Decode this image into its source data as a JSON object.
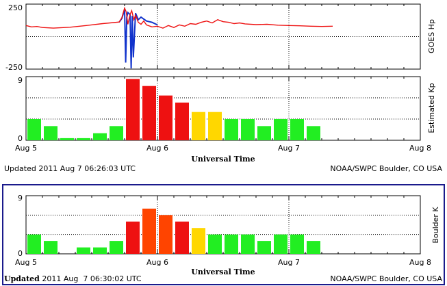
{
  "colors": {
    "green": "#22ee22",
    "yellow": "#ffd700",
    "orange_red": "#ff4400",
    "red": "#ee1111",
    "hp_red": "#ee1111",
    "hp_blue": "#1133cc",
    "frame": "#1a1a8c"
  },
  "top_panel": {
    "title_hp": "GOES Hp",
    "title_kp": "Estimated Kp",
    "hp_ticks": [
      "250",
      "-250"
    ],
    "kp_ticks": [
      "9",
      "0"
    ],
    "x_ticks": [
      "Aug 5",
      "Aug 6",
      "Aug 7",
      "Aug 8"
    ],
    "x_label": "Universal Time",
    "updated": "Updated 2011 Aug  7 06:26:03 UTC",
    "credit": "NOAA/SWPC Boulder, CO USA"
  },
  "bottom_panel": {
    "title": "Boulder K",
    "k_ticks": [
      "9",
      "0"
    ],
    "x_ticks": [
      "Aug 5",
      "Aug 6",
      "Aug 7",
      "Aug 8"
    ],
    "x_label": "Universal Time",
    "updated_word": "Updated",
    "updated_rest": " 2011 Aug  7 06:30:02 UTC",
    "credit": "NOAA/SWPC Boulder, CO USA"
  },
  "chart_data": [
    {
      "type": "line",
      "title": "GOES Hp",
      "xlabel": "Universal Time",
      "ylabel": "GOES Hp",
      "x_unit": "hours since 2011-08-05 00:00 UTC",
      "xlim": [
        0,
        72
      ],
      "ylim": [
        -250,
        250
      ],
      "series": [
        {
          "color": "red",
          "x": [
            0,
            1,
            2,
            3,
            5,
            8,
            11,
            14,
            16,
            17,
            17.5,
            18,
            18.3,
            18.6,
            19,
            19.3,
            19.7,
            20,
            20.5,
            21,
            21.5,
            22,
            23,
            24,
            25,
            26,
            27,
            28,
            29,
            30,
            31,
            32,
            33,
            34,
            35,
            36,
            37,
            38,
            39,
            40,
            42,
            44,
            46,
            48,
            50,
            52,
            54,
            56
          ],
          "y": [
            85,
            75,
            78,
            70,
            65,
            72,
            85,
            100,
            108,
            112,
            145,
            220,
            190,
            95,
            170,
            200,
            130,
            165,
            110,
            95,
            120,
            90,
            75,
            80,
            65,
            85,
            70,
            90,
            80,
            100,
            95,
            110,
            120,
            105,
            130,
            115,
            110,
            100,
            105,
            98,
            92,
            95,
            88,
            85,
            83,
            80,
            78,
            80
          ]
        },
        {
          "color": "blue",
          "x": [
            17,
            17.5,
            18,
            18.2,
            18.4,
            18.6,
            19,
            19.2,
            19.4,
            19.6,
            20,
            20.5,
            21,
            22,
            23,
            24
          ],
          "y": [
            110,
            140,
            210,
            -200,
            150,
            185,
            170,
            -245,
            160,
            -160,
            180,
            130,
            150,
            120,
            110,
            90
          ]
        }
      ]
    },
    {
      "type": "bar",
      "title": "Estimated Kp",
      "xlabel": "Universal Time",
      "ylabel": "Estimated Kp",
      "bar_hours": 3,
      "x_start": "2011-08-05 00:00 UTC",
      "ylim": [
        0,
        9
      ],
      "values": [
        3,
        2,
        0.3,
        0.3,
        1,
        2,
        8.67,
        7.67,
        6.33,
        5.33,
        4,
        4,
        3,
        3,
        2,
        3,
        3,
        2
      ],
      "colors": [
        "green",
        "green",
        "green",
        "green",
        "green",
        "green",
        "red",
        "red",
        "red",
        "red",
        "yellow",
        "yellow",
        "green",
        "green",
        "green",
        "green",
        "green",
        "green"
      ]
    },
    {
      "type": "bar",
      "title": "Boulder K",
      "xlabel": "Universal Time",
      "ylabel": "Boulder K",
      "bar_hours": 3,
      "x_start": "2011-08-05 00:00 UTC",
      "ylim": [
        0,
        9
      ],
      "values": [
        3,
        2,
        0,
        1,
        1,
        2,
        5,
        7,
        6,
        5,
        4,
        3,
        3,
        3,
        2,
        3,
        3,
        2
      ],
      "colors": [
        "green",
        "green",
        "green",
        "green",
        "green",
        "green",
        "red",
        "orange_red",
        "orange_red",
        "red",
        "yellow",
        "green",
        "green",
        "green",
        "green",
        "green",
        "green",
        "green"
      ]
    }
  ]
}
